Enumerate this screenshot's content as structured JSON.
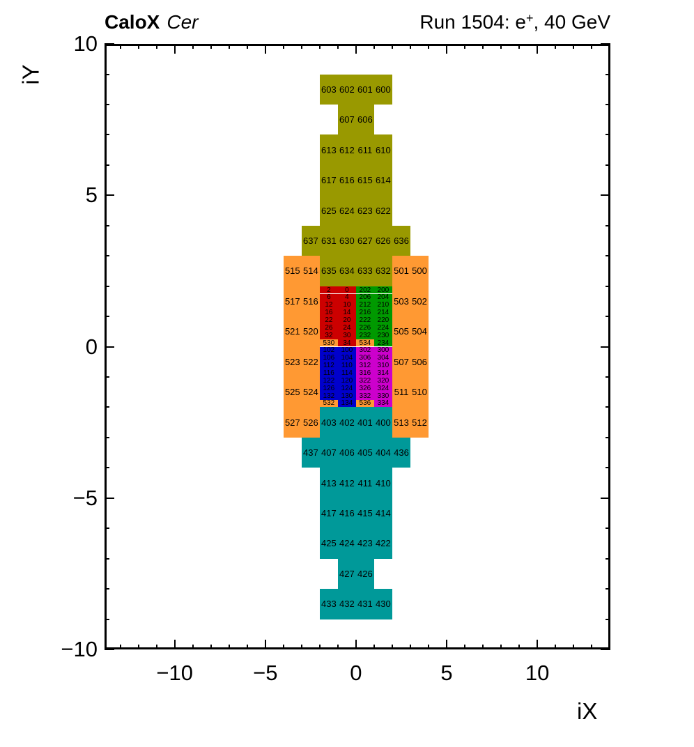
{
  "header": {
    "left_bold": "CaloX",
    "left_italic": "Cer",
    "right_prefix": "Run 1504: e",
    "right_sup": "+",
    "right_suffix": ", 40 GeV"
  },
  "axes": {
    "x": {
      "title": "iX",
      "tick_values": [
        -10,
        -5,
        0,
        5,
        10
      ],
      "tick_labels": [
        "−10",
        "−5",
        "0",
        "5",
        "10"
      ],
      "minor_step": 1
    },
    "y": {
      "title": "iY",
      "tick_values": [
        -10,
        -5,
        0,
        5,
        10
      ],
      "tick_labels": [
        "−10",
        "−5",
        "0",
        "5",
        "10"
      ],
      "minor_step": 1
    }
  },
  "palette": {
    "olive": "#999900",
    "orange": "#ff9933",
    "red": "#cc0000",
    "green": "#009900",
    "blue": "#0000cc",
    "magenta": "#cc00cc",
    "teal": "#009999"
  },
  "chart_data": {
    "type": "heatmap",
    "title": "CaloX Cer",
    "subtitle": "Run 1504: e+, 40 GeV",
    "xlabel": "iX",
    "ylabel": "iY",
    "xlim": [
      -13.87,
      14.03
    ],
    "ylim": [
      -10,
      10
    ],
    "grid": false,
    "legend": "none",
    "cells_format": [
      "label",
      "x_left",
      "y_bottom",
      "width",
      "height",
      "color_key"
    ],
    "cells": [
      [
        "603",
        -2,
        8,
        1,
        1,
        "olive"
      ],
      [
        "602",
        -1,
        8,
        1,
        1,
        "olive"
      ],
      [
        "601",
        0,
        8,
        1,
        1,
        "olive"
      ],
      [
        "600",
        1,
        8,
        1,
        1,
        "olive"
      ],
      [
        "607",
        -1,
        7,
        1,
        1,
        "olive"
      ],
      [
        "606",
        0,
        7,
        1,
        1,
        "olive"
      ],
      [
        "613",
        -2,
        6,
        1,
        1,
        "olive"
      ],
      [
        "612",
        -1,
        6,
        1,
        1,
        "olive"
      ],
      [
        "611",
        0,
        6,
        1,
        1,
        "olive"
      ],
      [
        "610",
        1,
        6,
        1,
        1,
        "olive"
      ],
      [
        "617",
        -2,
        5,
        1,
        1,
        "olive"
      ],
      [
        "616",
        -1,
        5,
        1,
        1,
        "olive"
      ],
      [
        "615",
        0,
        5,
        1,
        1,
        "olive"
      ],
      [
        "614",
        1,
        5,
        1,
        1,
        "olive"
      ],
      [
        "625",
        -2,
        4,
        1,
        1,
        "olive"
      ],
      [
        "624",
        -1,
        4,
        1,
        1,
        "olive"
      ],
      [
        "623",
        0,
        4,
        1,
        1,
        "olive"
      ],
      [
        "622",
        1,
        4,
        1,
        1,
        "olive"
      ],
      [
        "637",
        -3,
        3,
        1,
        1,
        "olive"
      ],
      [
        "631",
        -2,
        3,
        1,
        1,
        "olive"
      ],
      [
        "630",
        -1,
        3,
        1,
        1,
        "olive"
      ],
      [
        "627",
        0,
        3,
        1,
        1,
        "olive"
      ],
      [
        "626",
        1,
        3,
        1,
        1,
        "olive"
      ],
      [
        "636",
        2,
        3,
        1,
        1,
        "olive"
      ],
      [
        "635",
        -2,
        2,
        1,
        1,
        "olive"
      ],
      [
        "634",
        -1,
        2,
        1,
        1,
        "olive"
      ],
      [
        "633",
        0,
        2,
        1,
        1,
        "olive"
      ],
      [
        "632",
        1,
        2,
        1,
        1,
        "olive"
      ],
      [
        "515",
        -4,
        2,
        1,
        1,
        "orange"
      ],
      [
        "514",
        -3,
        2,
        1,
        1,
        "orange"
      ],
      [
        "501",
        2,
        2,
        1,
        1,
        "orange"
      ],
      [
        "500",
        3,
        2,
        1,
        1,
        "orange"
      ],
      [
        "517",
        -4,
        1,
        1,
        1,
        "orange"
      ],
      [
        "516",
        -3,
        1,
        1,
        1,
        "orange"
      ],
      [
        "503",
        2,
        1,
        1,
        1,
        "orange"
      ],
      [
        "502",
        3,
        1,
        1,
        1,
        "orange"
      ],
      [
        "521",
        -4,
        0,
        1,
        1,
        "orange"
      ],
      [
        "520",
        -3,
        0,
        1,
        1,
        "orange"
      ],
      [
        "505",
        2,
        0,
        1,
        1,
        "orange"
      ],
      [
        "504",
        3,
        0,
        1,
        1,
        "orange"
      ],
      [
        "523",
        -4,
        -1,
        1,
        1,
        "orange"
      ],
      [
        "522",
        -3,
        -1,
        1,
        1,
        "orange"
      ],
      [
        "507",
        2,
        -1,
        1,
        1,
        "orange"
      ],
      [
        "506",
        3,
        -1,
        1,
        1,
        "orange"
      ],
      [
        "525",
        -4,
        -2,
        1,
        1,
        "orange"
      ],
      [
        "524",
        -3,
        -2,
        1,
        1,
        "orange"
      ],
      [
        "511",
        2,
        -2,
        1,
        1,
        "orange"
      ],
      [
        "510",
        3,
        -2,
        1,
        1,
        "orange"
      ],
      [
        "527",
        -4,
        -3,
        1,
        1,
        "orange"
      ],
      [
        "526",
        -3,
        -3,
        1,
        1,
        "orange"
      ],
      [
        "513",
        2,
        -3,
        1,
        1,
        "orange"
      ],
      [
        "512",
        3,
        -3,
        1,
        1,
        "orange"
      ],
      [
        "2",
        -2,
        1.75,
        1,
        0.25,
        "red"
      ],
      [
        "0",
        -1,
        1.75,
        1,
        0.25,
        "red"
      ],
      [
        "6",
        -2,
        1.5,
        1,
        0.25,
        "red"
      ],
      [
        "4",
        -1,
        1.5,
        1,
        0.25,
        "red"
      ],
      [
        "12",
        -2,
        1.25,
        1,
        0.25,
        "red"
      ],
      [
        "10",
        -1,
        1.25,
        1,
        0.25,
        "red"
      ],
      [
        "16",
        -2,
        1,
        1,
        0.25,
        "red"
      ],
      [
        "14",
        -1,
        1,
        1,
        0.25,
        "red"
      ],
      [
        "22",
        -2,
        0.75,
        1,
        0.25,
        "red"
      ],
      [
        "20",
        -1,
        0.75,
        1,
        0.25,
        "red"
      ],
      [
        "26",
        -2,
        0.5,
        1,
        0.25,
        "red"
      ],
      [
        "24",
        -1,
        0.5,
        1,
        0.25,
        "red"
      ],
      [
        "32",
        -2,
        0.25,
        1,
        0.25,
        "red"
      ],
      [
        "30",
        -1,
        0.25,
        1,
        0.25,
        "red"
      ],
      [
        "530",
        -2,
        0,
        1,
        0.25,
        "orange"
      ],
      [
        "34",
        -1,
        0,
        1,
        0.25,
        "red"
      ],
      [
        "202",
        0,
        1.75,
        1,
        0.25,
        "green"
      ],
      [
        "200",
        1,
        1.75,
        1,
        0.25,
        "green"
      ],
      [
        "206",
        0,
        1.5,
        1,
        0.25,
        "green"
      ],
      [
        "204",
        1,
        1.5,
        1,
        0.25,
        "green"
      ],
      [
        "212",
        0,
        1.25,
        1,
        0.25,
        "green"
      ],
      [
        "210",
        1,
        1.25,
        1,
        0.25,
        "green"
      ],
      [
        "216",
        0,
        1,
        1,
        0.25,
        "green"
      ],
      [
        "214",
        1,
        1,
        1,
        0.25,
        "green"
      ],
      [
        "222",
        0,
        0.75,
        1,
        0.25,
        "green"
      ],
      [
        "220",
        1,
        0.75,
        1,
        0.25,
        "green"
      ],
      [
        "226",
        0,
        0.5,
        1,
        0.25,
        "green"
      ],
      [
        "224",
        1,
        0.5,
        1,
        0.25,
        "green"
      ],
      [
        "232",
        0,
        0.25,
        1,
        0.25,
        "green"
      ],
      [
        "230",
        1,
        0.25,
        1,
        0.25,
        "green"
      ],
      [
        "534",
        0,
        0,
        1,
        0.25,
        "orange"
      ],
      [
        "234",
        1,
        0,
        1,
        0.25,
        "green"
      ],
      [
        "102",
        -2,
        -0.25,
        1,
        0.25,
        "blue"
      ],
      [
        "100",
        -1,
        -0.25,
        1,
        0.25,
        "blue"
      ],
      [
        "106",
        -2,
        -0.5,
        1,
        0.25,
        "blue"
      ],
      [
        "104",
        -1,
        -0.5,
        1,
        0.25,
        "blue"
      ],
      [
        "112",
        -2,
        -0.75,
        1,
        0.25,
        "blue"
      ],
      [
        "110",
        -1,
        -0.75,
        1,
        0.25,
        "blue"
      ],
      [
        "116",
        -2,
        -1,
        1,
        0.25,
        "blue"
      ],
      [
        "114",
        -1,
        -1,
        1,
        0.25,
        "blue"
      ],
      [
        "122",
        -2,
        -1.25,
        1,
        0.25,
        "blue"
      ],
      [
        "120",
        -1,
        -1.25,
        1,
        0.25,
        "blue"
      ],
      [
        "126",
        -2,
        -1.5,
        1,
        0.25,
        "blue"
      ],
      [
        "124",
        -1,
        -1.5,
        1,
        0.25,
        "blue"
      ],
      [
        "132",
        -2,
        -1.75,
        1,
        0.25,
        "blue"
      ],
      [
        "130",
        -1,
        -1.75,
        1,
        0.25,
        "blue"
      ],
      [
        "532",
        -2,
        -2,
        1,
        0.25,
        "orange"
      ],
      [
        "134",
        -1,
        -2,
        1,
        0.25,
        "blue"
      ],
      [
        "302",
        0,
        -0.25,
        1,
        0.25,
        "magenta"
      ],
      [
        "300",
        1,
        -0.25,
        1,
        0.25,
        "magenta"
      ],
      [
        "306",
        0,
        -0.5,
        1,
        0.25,
        "magenta"
      ],
      [
        "304",
        1,
        -0.5,
        1,
        0.25,
        "magenta"
      ],
      [
        "312",
        0,
        -0.75,
        1,
        0.25,
        "magenta"
      ],
      [
        "310",
        1,
        -0.75,
        1,
        0.25,
        "magenta"
      ],
      [
        "316",
        0,
        -1,
        1,
        0.25,
        "magenta"
      ],
      [
        "314",
        1,
        -1,
        1,
        0.25,
        "magenta"
      ],
      [
        "322",
        0,
        -1.25,
        1,
        0.25,
        "magenta"
      ],
      [
        "320",
        1,
        -1.25,
        1,
        0.25,
        "magenta"
      ],
      [
        "326",
        0,
        -1.5,
        1,
        0.25,
        "magenta"
      ],
      [
        "324",
        1,
        -1.5,
        1,
        0.25,
        "magenta"
      ],
      [
        "332",
        0,
        -1.75,
        1,
        0.25,
        "magenta"
      ],
      [
        "330",
        1,
        -1.75,
        1,
        0.25,
        "magenta"
      ],
      [
        "536",
        0,
        -2,
        1,
        0.25,
        "orange"
      ],
      [
        "334",
        1,
        -2,
        1,
        0.25,
        "magenta"
      ],
      [
        "403",
        -2,
        -3,
        1,
        1,
        "teal"
      ],
      [
        "402",
        -1,
        -3,
        1,
        1,
        "teal"
      ],
      [
        "401",
        0,
        -3,
        1,
        1,
        "teal"
      ],
      [
        "400",
        1,
        -3,
        1,
        1,
        "teal"
      ],
      [
        "437",
        -3,
        -4,
        1,
        1,
        "teal"
      ],
      [
        "407",
        -2,
        -4,
        1,
        1,
        "teal"
      ],
      [
        "406",
        -1,
        -4,
        1,
        1,
        "teal"
      ],
      [
        "405",
        0,
        -4,
        1,
        1,
        "teal"
      ],
      [
        "404",
        1,
        -4,
        1,
        1,
        "teal"
      ],
      [
        "436",
        2,
        -4,
        1,
        1,
        "teal"
      ],
      [
        "413",
        -2,
        -5,
        1,
        1,
        "teal"
      ],
      [
        "412",
        -1,
        -5,
        1,
        1,
        "teal"
      ],
      [
        "411",
        0,
        -5,
        1,
        1,
        "teal"
      ],
      [
        "410",
        1,
        -5,
        1,
        1,
        "teal"
      ],
      [
        "417",
        -2,
        -6,
        1,
        1,
        "teal"
      ],
      [
        "416",
        -1,
        -6,
        1,
        1,
        "teal"
      ],
      [
        "415",
        0,
        -6,
        1,
        1,
        "teal"
      ],
      [
        "414",
        1,
        -6,
        1,
        1,
        "teal"
      ],
      [
        "425",
        -2,
        -7,
        1,
        1,
        "teal"
      ],
      [
        "424",
        -1,
        -7,
        1,
        1,
        "teal"
      ],
      [
        "423",
        0,
        -7,
        1,
        1,
        "teal"
      ],
      [
        "422",
        1,
        -7,
        1,
        1,
        "teal"
      ],
      [
        "427",
        -1,
        -8,
        1,
        1,
        "teal"
      ],
      [
        "426",
        0,
        -8,
        1,
        1,
        "teal"
      ],
      [
        "433",
        -2,
        -9,
        1,
        1,
        "teal"
      ],
      [
        "432",
        -1,
        -9,
        1,
        1,
        "teal"
      ],
      [
        "431",
        0,
        -9,
        1,
        1,
        "teal"
      ],
      [
        "430",
        1,
        -9,
        1,
        1,
        "teal"
      ]
    ]
  }
}
